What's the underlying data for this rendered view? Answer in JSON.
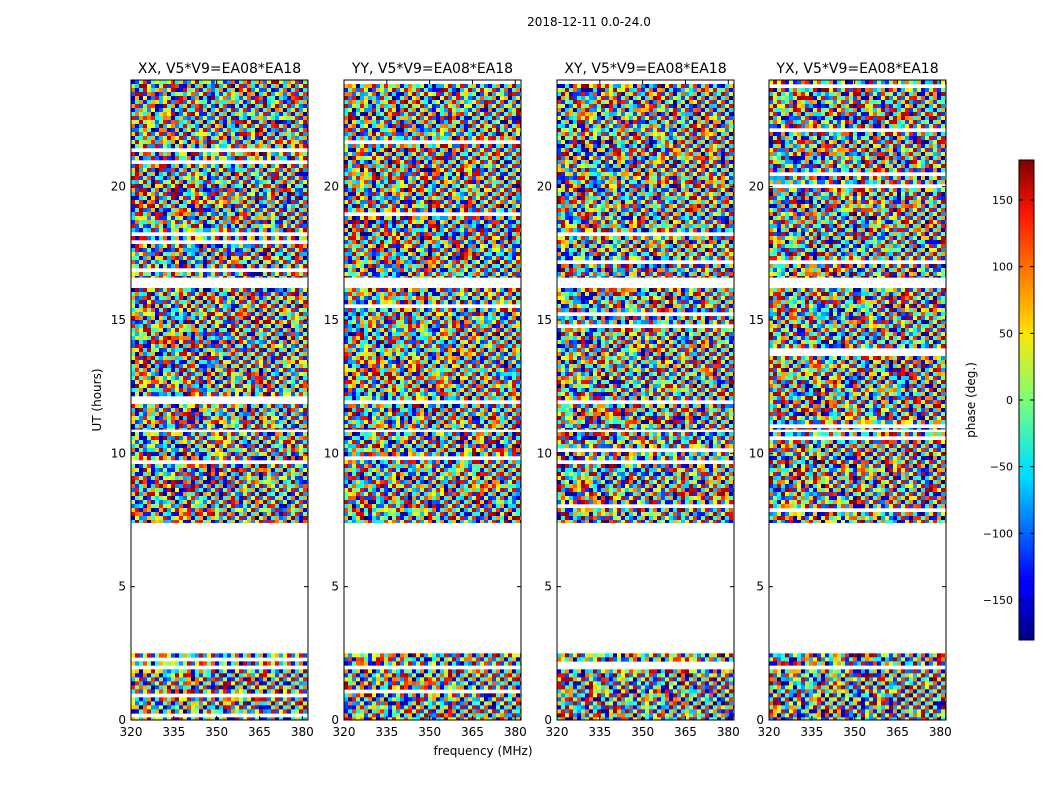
{
  "figure": {
    "suptitle": "2018-12-11 0.0-24.0"
  },
  "chart_data": {
    "type": "heatmap",
    "title": "2018-12-11 0.0-24.0",
    "xlabel": "frequency (MHz)",
    "ylabel": "UT (hours)",
    "xlim": [
      320,
      382
    ],
    "ylim": [
      0,
      24
    ],
    "x_ticks": [
      320,
      335,
      350,
      365,
      380
    ],
    "y_ticks": [
      0,
      5,
      10,
      15,
      20
    ],
    "panels": [
      {
        "title": "XX, V5*V9=EA08*EA18",
        "polarization": "XX"
      },
      {
        "title": "YY, V5*V9=EA08*EA18",
        "polarization": "YY"
      },
      {
        "title": "XY, V5*V9=EA08*EA18",
        "polarization": "XY"
      },
      {
        "title": "YX, V5*V9=EA08*EA18",
        "polarization": "YX"
      }
    ],
    "data_blocks_ut_hours": [
      [
        0.0,
        2.5
      ],
      [
        7.4,
        10.8
      ],
      [
        10.9,
        16.2
      ],
      [
        16.6,
        24.0
      ]
    ],
    "colorbar": {
      "label": "phase (deg.)",
      "range": [
        -180,
        180
      ],
      "ticks": [
        150,
        100,
        50,
        0,
        -50,
        -100,
        -150
      ],
      "colormap": "jet"
    }
  }
}
